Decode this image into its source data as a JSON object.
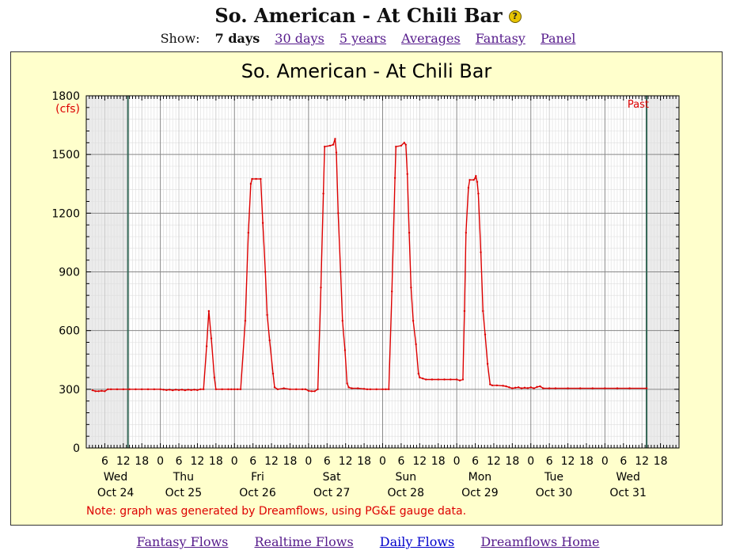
{
  "page": {
    "title": "So. American - At Chili Bar",
    "help_glyph": "?",
    "show_label": "Show:",
    "show_options": [
      "7 days",
      "30 days",
      "5 years",
      "Averages",
      "Fantasy",
      "Panel"
    ],
    "current_option": "7 days"
  },
  "footer": {
    "links": [
      "Fantasy Flows",
      "Realtime Flows",
      "Daily Flows",
      "Dreamflows Home"
    ]
  },
  "colors": {
    "line": "#dd0000",
    "frame_bg": "#ffffcc",
    "plot_bg": "#ffffff",
    "out_of_range_bg": "#ececec",
    "now_marker": "#336655",
    "link": "#551a8b",
    "link_active": "#0000cc"
  },
  "chart_data": {
    "type": "line",
    "title": "So. American - At Chili Bar",
    "ylabel": "(cfs)",
    "past_label": "Past",
    "note": "Note: graph was generated by Dreamflows, using PG&E gauge data.",
    "ylim": [
      0,
      1800
    ],
    "y_ticks": [
      0,
      300,
      600,
      900,
      1200,
      1500,
      1800
    ],
    "xlim": [
      0,
      192
    ],
    "x_unit": "hours from midnight Oct 24",
    "hour_ticks": [
      {
        "x": 6,
        "label": "6"
      },
      {
        "x": 12,
        "label": "12"
      },
      {
        "x": 18,
        "label": "18"
      },
      {
        "x": 24,
        "label": "0"
      },
      {
        "x": 30,
        "label": "6"
      },
      {
        "x": 36,
        "label": "12"
      },
      {
        "x": 42,
        "label": "18"
      },
      {
        "x": 48,
        "label": "0"
      },
      {
        "x": 54,
        "label": "6"
      },
      {
        "x": 60,
        "label": "12"
      },
      {
        "x": 66,
        "label": "18"
      },
      {
        "x": 72,
        "label": "0"
      },
      {
        "x": 78,
        "label": "6"
      },
      {
        "x": 84,
        "label": "12"
      },
      {
        "x": 90,
        "label": "18"
      },
      {
        "x": 96,
        "label": "0"
      },
      {
        "x": 102,
        "label": "6"
      },
      {
        "x": 108,
        "label": "12"
      },
      {
        "x": 114,
        "label": "18"
      },
      {
        "x": 120,
        "label": "0"
      },
      {
        "x": 126,
        "label": "6"
      },
      {
        "x": 132,
        "label": "12"
      },
      {
        "x": 138,
        "label": "18"
      },
      {
        "x": 144,
        "label": "0"
      },
      {
        "x": 150,
        "label": "6"
      },
      {
        "x": 156,
        "label": "12"
      },
      {
        "x": 162,
        "label": "18"
      },
      {
        "x": 168,
        "label": "0"
      },
      {
        "x": 174,
        "label": "6"
      },
      {
        "x": 180,
        "label": "12"
      },
      {
        "x": 186,
        "label": "18"
      }
    ],
    "days": [
      {
        "x": 9.5,
        "day": "Wed",
        "date": "Oct 24"
      },
      {
        "x": 31.5,
        "day": "Thu",
        "date": "Oct 25"
      },
      {
        "x": 55.5,
        "day": "Fri",
        "date": "Oct 26"
      },
      {
        "x": 79.5,
        "day": "Sat",
        "date": "Oct 27"
      },
      {
        "x": 103.5,
        "day": "Sun",
        "date": "Oct 28"
      },
      {
        "x": 127.5,
        "day": "Mon",
        "date": "Oct 29"
      },
      {
        "x": 151.5,
        "day": "Tue",
        "date": "Oct 30"
      },
      {
        "x": 175.5,
        "day": "Wed",
        "date": "Oct 31"
      }
    ],
    "data_start_x": 13.5,
    "data_end_x": 181.5,
    "series": [
      {
        "points": [
          [
            2,
            295
          ],
          [
            3,
            290
          ],
          [
            4,
            290
          ],
          [
            5,
            292
          ],
          [
            6,
            290
          ],
          [
            7,
            300
          ],
          [
            8,
            300
          ],
          [
            10,
            300
          ],
          [
            12,
            300
          ],
          [
            14,
            300
          ],
          [
            16,
            300
          ],
          [
            18,
            300
          ],
          [
            20,
            300
          ],
          [
            22,
            300
          ],
          [
            24,
            300
          ],
          [
            25,
            298
          ],
          [
            26,
            296
          ],
          [
            27,
            298
          ],
          [
            28,
            295
          ],
          [
            29,
            298
          ],
          [
            30,
            296
          ],
          [
            31,
            298
          ],
          [
            32,
            295
          ],
          [
            33,
            298
          ],
          [
            34,
            296
          ],
          [
            35,
            298
          ],
          [
            36,
            296
          ],
          [
            37,
            300
          ],
          [
            38,
            300
          ],
          [
            39,
            520
          ],
          [
            39.7,
            700
          ],
          [
            40.5,
            560
          ],
          [
            41.5,
            360
          ],
          [
            42,
            300
          ],
          [
            44,
            300
          ],
          [
            46,
            300
          ],
          [
            47,
            300
          ],
          [
            48,
            300
          ],
          [
            49,
            300
          ],
          [
            50,
            300
          ],
          [
            51.5,
            650
          ],
          [
            52.5,
            1100
          ],
          [
            53.3,
            1350
          ],
          [
            53.7,
            1375
          ],
          [
            55,
            1375
          ],
          [
            56.5,
            1375
          ],
          [
            57.2,
            1150
          ],
          [
            58,
            900
          ],
          [
            58.6,
            680
          ],
          [
            59.4,
            550
          ],
          [
            60.5,
            380
          ],
          [
            61,
            310
          ],
          [
            62,
            300
          ],
          [
            64,
            305
          ],
          [
            66,
            300
          ],
          [
            68,
            300
          ],
          [
            70,
            300
          ],
          [
            71,
            300
          ],
          [
            72,
            292
          ],
          [
            73,
            290
          ],
          [
            74,
            290
          ],
          [
            75,
            300
          ],
          [
            76,
            820
          ],
          [
            76.8,
            1300
          ],
          [
            77.2,
            1540
          ],
          [
            79,
            1545
          ],
          [
            80,
            1550
          ],
          [
            80.6,
            1580
          ],
          [
            81,
            1510
          ],
          [
            81.6,
            1200
          ],
          [
            82.4,
            900
          ],
          [
            83,
            650
          ],
          [
            83.8,
            500
          ],
          [
            84.5,
            330
          ],
          [
            85,
            310
          ],
          [
            86,
            305
          ],
          [
            88,
            305
          ],
          [
            90,
            302
          ],
          [
            91,
            300
          ],
          [
            92,
            300
          ],
          [
            94,
            300
          ],
          [
            96,
            300
          ],
          [
            97,
            300
          ],
          [
            98,
            300
          ],
          [
            99,
            800
          ],
          [
            100,
            1380
          ],
          [
            100.3,
            1540
          ],
          [
            102,
            1545
          ],
          [
            103,
            1560
          ],
          [
            103.5,
            1550
          ],
          [
            104,
            1400
          ],
          [
            104.6,
            1100
          ],
          [
            105.2,
            820
          ],
          [
            105.9,
            650
          ],
          [
            106.8,
            530
          ],
          [
            107.6,
            380
          ],
          [
            108,
            360
          ],
          [
            109,
            355
          ],
          [
            110,
            350
          ],
          [
            112,
            350
          ],
          [
            114,
            350
          ],
          [
            116,
            350
          ],
          [
            118,
            350
          ],
          [
            120,
            350
          ],
          [
            121,
            345
          ],
          [
            122,
            350
          ],
          [
            122.5,
            700
          ],
          [
            123,
            1100
          ],
          [
            123.8,
            1330
          ],
          [
            124.2,
            1370
          ],
          [
            125.5,
            1370
          ],
          [
            126,
            1380
          ],
          [
            126.2,
            1390
          ],
          [
            126.6,
            1360
          ],
          [
            127,
            1300
          ],
          [
            127.8,
            1000
          ],
          [
            128.5,
            700
          ],
          [
            129.2,
            580
          ],
          [
            130,
            430
          ],
          [
            130.8,
            325
          ],
          [
            131.5,
            320
          ],
          [
            133,
            320
          ],
          [
            135,
            318
          ],
          [
            136,
            315
          ],
          [
            137,
            310
          ],
          [
            138,
            305
          ],
          [
            139,
            308
          ],
          [
            140,
            310
          ],
          [
            141,
            305
          ],
          [
            142,
            308
          ],
          [
            143,
            306
          ],
          [
            144,
            310
          ],
          [
            145,
            305
          ],
          [
            146,
            312
          ],
          [
            147,
            315
          ],
          [
            148,
            305
          ],
          [
            150,
            305
          ],
          [
            152,
            305
          ],
          [
            156,
            305
          ],
          [
            160,
            305
          ],
          [
            164,
            305
          ],
          [
            168,
            305
          ],
          [
            172,
            305
          ],
          [
            176,
            305
          ],
          [
            181.5,
            305
          ]
        ]
      }
    ]
  }
}
